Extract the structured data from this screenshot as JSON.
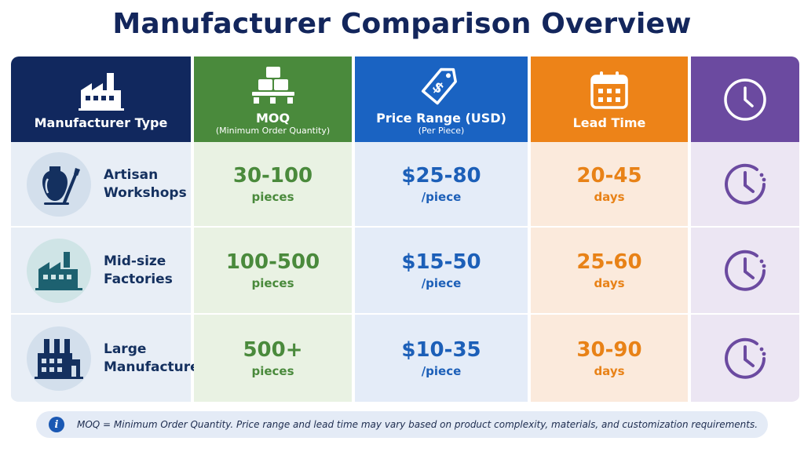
{
  "title": "Manufacturer Comparison Overview",
  "colors": {
    "navy": "#11285e",
    "green": "#4a8a3c",
    "blue": "#1a63c2",
    "orange": "#ed8318",
    "purple": "#6b4aa0"
  },
  "headers": {
    "type": {
      "label": "Manufacturer Type",
      "icon": "factory-icon"
    },
    "moq": {
      "label": "MOQ",
      "sub": "(Minimum Order Quantity)",
      "icon": "boxes-pallet-icon"
    },
    "price": {
      "label": "Price Range (USD)",
      "sub": "(Per Piece)",
      "icon": "price-tag-icon"
    },
    "lead": {
      "label": "Lead Time",
      "icon": "calendar-icon"
    },
    "clock": {
      "icon": "clock-icon"
    }
  },
  "rows": [
    {
      "type_line1": "Artisan",
      "type_line2": "Workshops",
      "icon": "pottery-brush-icon",
      "moq_value": "30-100",
      "moq_unit": "pieces",
      "price_value": "$25-80",
      "price_unit": "/piece",
      "lead_value": "20-45",
      "lead_unit": "days"
    },
    {
      "type_line1": "Mid-size",
      "type_line2": "Factories",
      "icon": "factory-icon",
      "moq_value": "100-500",
      "moq_unit": "pieces",
      "price_value": "$15-50",
      "price_unit": "/piece",
      "lead_value": "25-60",
      "lead_unit": "days"
    },
    {
      "type_line1": "Large",
      "type_line2": "Manufacturers",
      "icon": "large-factory-icon",
      "moq_value": "500+",
      "moq_unit": "pieces",
      "price_value": "$10-35",
      "price_unit": "/piece",
      "lead_value": "30-90",
      "lead_unit": "days"
    }
  ],
  "note": {
    "icon": "info-icon",
    "text": "MOQ = Minimum Order Quantity. Price range and lead time may vary based on product complexity, materials, and customization requirements."
  }
}
